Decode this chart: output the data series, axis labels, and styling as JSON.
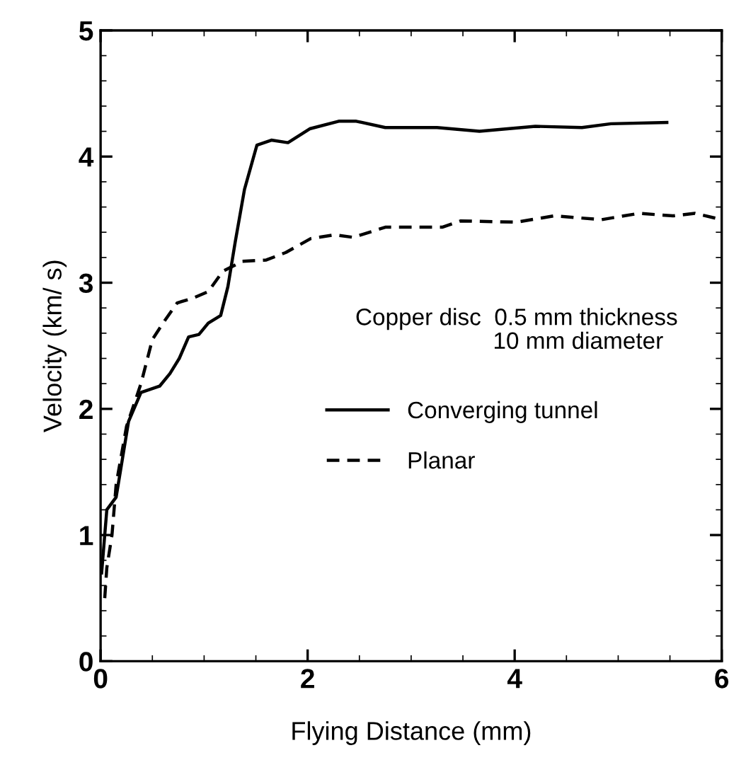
{
  "chart_data": {
    "type": "line",
    "xlabel": "Flying Distance (mm)",
    "ylabel": "Velocity (km/ s)",
    "xlim": [
      0,
      6
    ],
    "ylim": [
      0,
      5
    ],
    "xticks": [
      0,
      2,
      4,
      6
    ],
    "yticks": [
      0,
      1,
      2,
      3,
      4,
      5
    ],
    "grid": false,
    "legend": "right",
    "marker": "none",
    "annotations": [
      "Copper disc  0.5 mm thickness\n                     10 mm diameter"
    ],
    "series": [
      {
        "name": "Converging tunnel",
        "color": "#000000",
        "line_style": "solid",
        "x": [
          0.01,
          0.06,
          0.15,
          0.2,
          0.27,
          0.39,
          0.57,
          0.67,
          0.76,
          0.85,
          0.95,
          1.04,
          1.16,
          1.23,
          1.3,
          1.39,
          1.51,
          1.65,
          1.81,
          2.02,
          2.3,
          2.47,
          2.75,
          3.25,
          3.66,
          4.2,
          4.65,
          4.93,
          5.47
        ],
        "values": [
          0.7,
          1.2,
          1.3,
          1.55,
          1.9,
          2.13,
          2.18,
          2.28,
          2.4,
          2.57,
          2.59,
          2.68,
          2.74,
          2.97,
          3.32,
          3.74,
          4.09,
          4.13,
          4.11,
          4.22,
          4.28,
          4.28,
          4.23,
          4.23,
          4.2,
          4.24,
          4.23,
          4.26,
          4.27
        ]
      },
      {
        "name": "Planar",
        "color": "#000000",
        "line_style": "dashed",
        "x": [
          0.04,
          0.06,
          0.11,
          0.15,
          0.25,
          0.39,
          0.5,
          0.62,
          0.74,
          0.9,
          1.04,
          1.18,
          1.37,
          1.6,
          1.79,
          2.03,
          2.26,
          2.44,
          2.75,
          3.3,
          3.48,
          4.02,
          4.38,
          4.84,
          5.2,
          5.53,
          5.74,
          6.0
        ],
        "values": [
          0.5,
          0.74,
          1.0,
          1.4,
          1.86,
          2.2,
          2.55,
          2.7,
          2.84,
          2.88,
          2.93,
          3.09,
          3.17,
          3.18,
          3.24,
          3.35,
          3.38,
          3.36,
          3.44,
          3.44,
          3.49,
          3.48,
          3.53,
          3.5,
          3.55,
          3.53,
          3.55,
          3.5
        ]
      }
    ]
  }
}
